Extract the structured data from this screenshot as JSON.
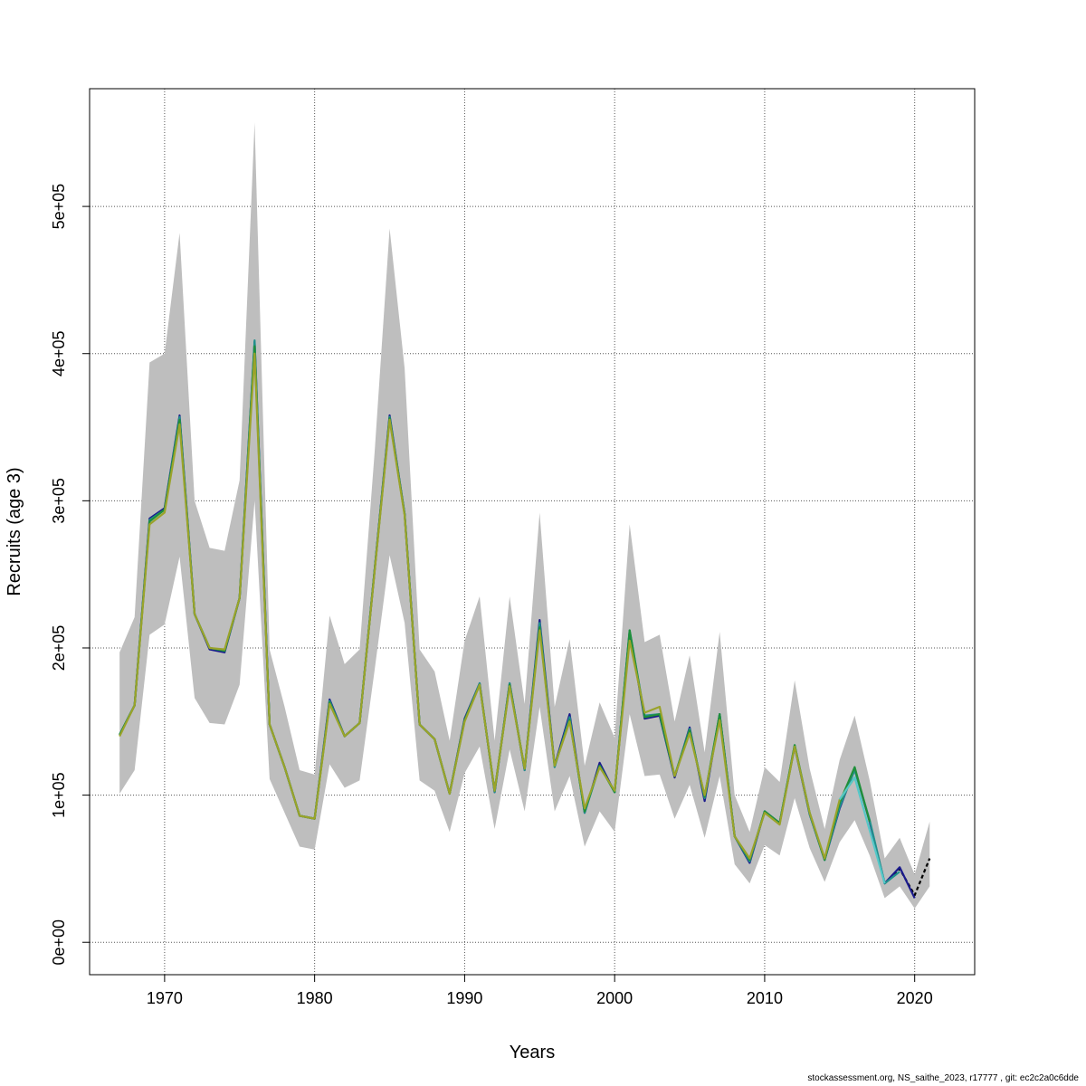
{
  "chart_data": {
    "type": "line",
    "title": "",
    "xlabel": "Years",
    "ylabel": "Recruits (age 3)",
    "xlim": [
      1965,
      2024
    ],
    "ylim": [
      -22000,
      580000
    ],
    "x_ticks": [
      1970,
      1980,
      1990,
      2000,
      2010,
      2020
    ],
    "x_tick_labels": [
      "1970",
      "1980",
      "1990",
      "2000",
      "2010",
      "2020"
    ],
    "y_ticks": [
      0,
      100000,
      200000,
      300000,
      400000,
      500000
    ],
    "y_tick_labels": [
      "0e+00",
      "1e+05",
      "2e+05",
      "3e+05",
      "4e+05",
      "5e+05"
    ],
    "grid": true,
    "colors": {
      "band": "#bebebe",
      "series": [
        "#000000",
        "#1a1a8c",
        "#21908d",
        "#1f8f3a",
        "#9aa32a",
        "#55c8c8"
      ]
    },
    "confidence_band": {
      "x": [
        1967,
        1968,
        1969,
        1970,
        1971,
        1972,
        1973,
        1974,
        1975,
        1976,
        1977,
        1978,
        1979,
        1980,
        1981,
        1982,
        1983,
        1984,
        1985,
        1986,
        1987,
        1988,
        1989,
        1990,
        1991,
        1992,
        1993,
        1994,
        1995,
        1996,
        1997,
        1998,
        1999,
        2000,
        2001,
        2002,
        2003,
        2004,
        2005,
        2006,
        2007,
        2008,
        2009,
        2010,
        2011,
        2012,
        2013,
        2014,
        2015,
        2016,
        2017,
        2018,
        2019,
        2020,
        2021
      ],
      "lower": [
        101000,
        117000,
        209000,
        216000,
        262000,
        166000,
        149000,
        148000,
        175000,
        300000,
        111000,
        88000,
        65000,
        63000,
        121000,
        105000,
        110000,
        185000,
        263000,
        217000,
        110000,
        103000,
        75000,
        115000,
        133000,
        77000,
        131000,
        89000,
        160000,
        89000,
        113000,
        65000,
        89000,
        75000,
        155000,
        113000,
        114000,
        84000,
        107000,
        71000,
        113000,
        53000,
        40000,
        66000,
        59000,
        98000,
        64000,
        41000,
        68000,
        83000,
        59000,
        30000,
        38000,
        23000,
        38000
      ],
      "upper": [
        197000,
        221000,
        394000,
        400000,
        482000,
        300000,
        268000,
        266000,
        314000,
        557000,
        199000,
        160000,
        117000,
        114000,
        222000,
        189000,
        199000,
        333000,
        485000,
        390000,
        199000,
        184000,
        137000,
        205000,
        235000,
        137000,
        235000,
        162000,
        292000,
        160000,
        206000,
        120000,
        163000,
        139000,
        284000,
        204000,
        209000,
        150000,
        195000,
        129000,
        211000,
        100000,
        75000,
        119000,
        109000,
        178000,
        118000,
        77000,
        124000,
        154000,
        110000,
        57000,
        71000,
        46000,
        82000
      ]
    },
    "series": [
      {
        "x": [
          2018,
          2019,
          2020,
          2021
        ],
        "values": [
          40000,
          50000,
          32000,
          57000
        ],
        "dashed": true
      },
      {
        "x": [
          1967,
          1968,
          1969,
          1970,
          1971,
          1972,
          1973,
          1974,
          1975,
          1976,
          1977,
          1978,
          1979,
          1980,
          1981,
          1982,
          1983,
          1984,
          1985,
          1986,
          1987,
          1988,
          1989,
          1990,
          1991,
          1992,
          1993,
          1994,
          1995,
          1996,
          1997,
          1998,
          1999,
          2000,
          2001,
          2002,
          2003,
          2004,
          2005,
          2006,
          2007,
          2008,
          2009,
          2010,
          2011,
          2012,
          2013,
          2014,
          2015,
          2016,
          2017,
          2018,
          2019,
          2020
        ],
        "values": [
          141000,
          161000,
          288000,
          295000,
          358000,
          223000,
          199000,
          197000,
          234000,
          408000,
          148000,
          119000,
          86000,
          84000,
          165000,
          140000,
          149000,
          253000,
          358000,
          291000,
          148000,
          138000,
          101000,
          152000,
          176000,
          102000,
          176000,
          117000,
          219000,
          120000,
          155000,
          88000,
          122000,
          102000,
          211000,
          152000,
          154000,
          112000,
          146000,
          96000,
          155000,
          72000,
          54000,
          89000,
          81000,
          133000,
          87000,
          56000,
          91000,
          118000,
          82000,
          40000,
          51000,
          30000
        ]
      },
      {
        "x": [
          1967,
          1968,
          1969,
          1970,
          1971,
          1972,
          1973,
          1974,
          1975,
          1976,
          1977,
          1978,
          1979,
          1980,
          1981,
          1982,
          1983,
          1984,
          1985,
          1986,
          1987,
          1988,
          1989,
          1990,
          1991,
          1992,
          1993,
          1994,
          1995,
          1996,
          1997,
          1998,
          1999,
          2000,
          2001,
          2002,
          2003,
          2004,
          2005,
          2006,
          2007,
          2008,
          2009,
          2010,
          2011,
          2012,
          2013,
          2014,
          2015,
          2016,
          2017,
          2018,
          2019
        ],
        "values": [
          141000,
          161000,
          287000,
          294000,
          357000,
          223000,
          200000,
          198000,
          234000,
          409000,
          148000,
          119000,
          86000,
          84000,
          164000,
          140000,
          149000,
          253000,
          357000,
          291000,
          148000,
          138000,
          101000,
          151000,
          176000,
          102000,
          176000,
          117000,
          217000,
          119000,
          153000,
          88000,
          120000,
          102000,
          212000,
          154000,
          155000,
          113000,
          145000,
          98000,
          155000,
          72000,
          55000,
          89000,
          81000,
          134000,
          87000,
          56000,
          92000,
          117000,
          83000,
          40000,
          48000
        ]
      },
      {
        "x": [
          1967,
          1968,
          1969,
          1970,
          1971,
          1972,
          1973,
          1974,
          1975,
          1976,
          1977,
          1978,
          1979,
          1980,
          1981,
          1982,
          1983,
          1984,
          1985,
          1986,
          1987,
          1988,
          1989,
          1990,
          1991,
          1992,
          1993,
          1994,
          1995,
          1996,
          1997,
          1998,
          1999,
          2000,
          2001,
          2002,
          2003,
          2004,
          2005,
          2006,
          2007,
          2008,
          2009,
          2010,
          2011,
          2012,
          2013,
          2014,
          2015,
          2016,
          2017
        ],
        "values": [
          141000,
          161000,
          286000,
          294000,
          355000,
          223000,
          200000,
          198000,
          234000,
          405000,
          148000,
          119000,
          86000,
          84000,
          163000,
          140000,
          149000,
          253000,
          356000,
          291000,
          148000,
          138000,
          101000,
          151000,
          175000,
          103000,
          175000,
          118000,
          214000,
          120000,
          151000,
          89000,
          120000,
          102000,
          212000,
          153000,
          155000,
          113000,
          144000,
          99000,
          155000,
          72000,
          56000,
          89000,
          81000,
          134000,
          88000,
          56000,
          95000,
          119000,
          82000
        ]
      },
      {
        "x": [
          1967,
          1968,
          1969,
          1970,
          1971,
          1972,
          1973,
          1974,
          1975,
          1976,
          1977,
          1978,
          1979,
          1980,
          1981,
          1982,
          1983,
          1984,
          1985,
          1986,
          1987,
          1988,
          1989,
          1990,
          1991,
          1992,
          1993,
          1994,
          1995,
          1996,
          1997,
          1998,
          1999,
          2000,
          2001,
          2002,
          2003,
          2004,
          2005,
          2006,
          2007,
          2008,
          2009,
          2010,
          2011,
          2012,
          2013,
          2014,
          2015,
          2016
        ],
        "values": [
          140000,
          161000,
          284000,
          292000,
          352000,
          223000,
          200000,
          199000,
          234000,
          400000,
          148000,
          119000,
          86000,
          84000,
          162000,
          140000,
          149000,
          252000,
          355000,
          290000,
          148000,
          138000,
          101000,
          150000,
          175000,
          103000,
          174000,
          118000,
          212000,
          120000,
          150000,
          91000,
          119000,
          103000,
          205000,
          156000,
          160000,
          113000,
          142000,
          100000,
          151000,
          72000,
          57000,
          88000,
          80000,
          133000,
          88000,
          57000,
          97000,
          112000
        ]
      },
      {
        "x": [
          2015,
          2016,
          2017,
          2018
        ],
        "values": [
          97000,
          112000,
          76000,
          40000
        ]
      }
    ]
  },
  "footer": "stockassessment.org, NS_saithe_2023, r17777 , git: ec2c2a0c6dde"
}
